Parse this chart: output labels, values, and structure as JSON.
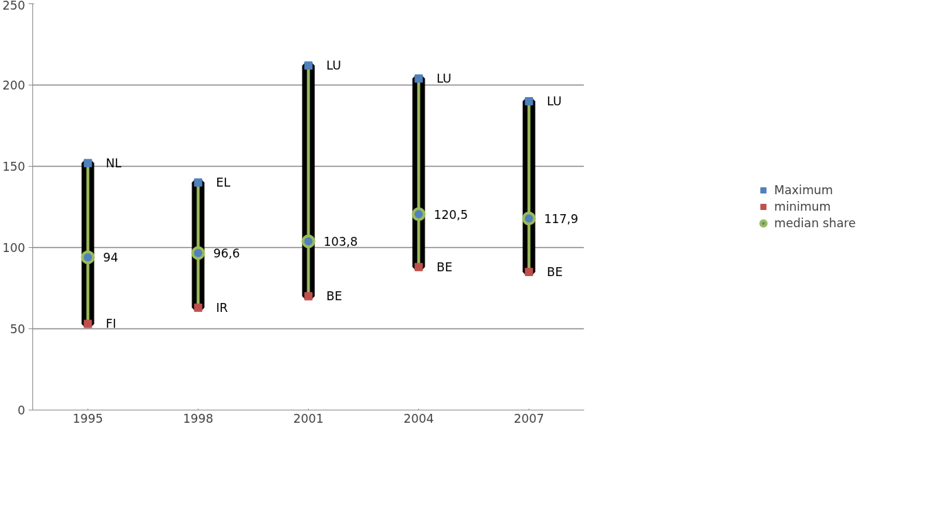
{
  "chart_data": {
    "type": "scatter",
    "categories": [
      "1995",
      "1998",
      "2001",
      "2004",
      "2007"
    ],
    "ylim": [
      0,
      250
    ],
    "yticks": [
      0,
      50,
      100,
      150,
      200,
      250
    ],
    "grid": "y",
    "legend": "right",
    "series": [
      {
        "type": "bar",
        "color": "#9bbb59",
        "base": [
          53,
          63,
          70,
          88,
          85
        ],
        "values": [
          99,
          77,
          142,
          116,
          105
        ]
      },
      {
        "name": "Maximum",
        "color": "#4f81bd",
        "marker": "square",
        "values": [
          152,
          140,
          212,
          204,
          190
        ]
      },
      {
        "name": "minimum",
        "color": "#c0504d",
        "marker": "square",
        "values": [
          53,
          63,
          70,
          88,
          85
        ]
      },
      {
        "name": "median share",
        "color": "#4f81bd",
        "marker": "circle",
        "values": [
          94,
          96.6,
          103.8,
          120.5,
          117.9
        ],
        "value_labels": [
          "94",
          "96,6",
          "103,8",
          "120,5",
          "117,9"
        ]
      }
    ],
    "annotations": [
      {
        "text": "NL",
        "x": "1995",
        "y": 152
      },
      {
        "text": "FI",
        "x": "1995",
        "y": 53
      },
      {
        "text": "EL",
        "x": "1998",
        "y": 140
      },
      {
        "text": "IR",
        "x": "1998",
        "y": 63
      },
      {
        "text": "LU",
        "x": "2001",
        "y": 212
      },
      {
        "text": "BE",
        "x": "2001",
        "y": 70
      },
      {
        "text": "LU",
        "x": "2004",
        "y": 204
      },
      {
        "text": "BE",
        "x": "2004",
        "y": 88
      },
      {
        "text": "LU",
        "x": "2007",
        "y": 190
      },
      {
        "text": "BE",
        "x": "2007",
        "y": 85
      }
    ]
  }
}
